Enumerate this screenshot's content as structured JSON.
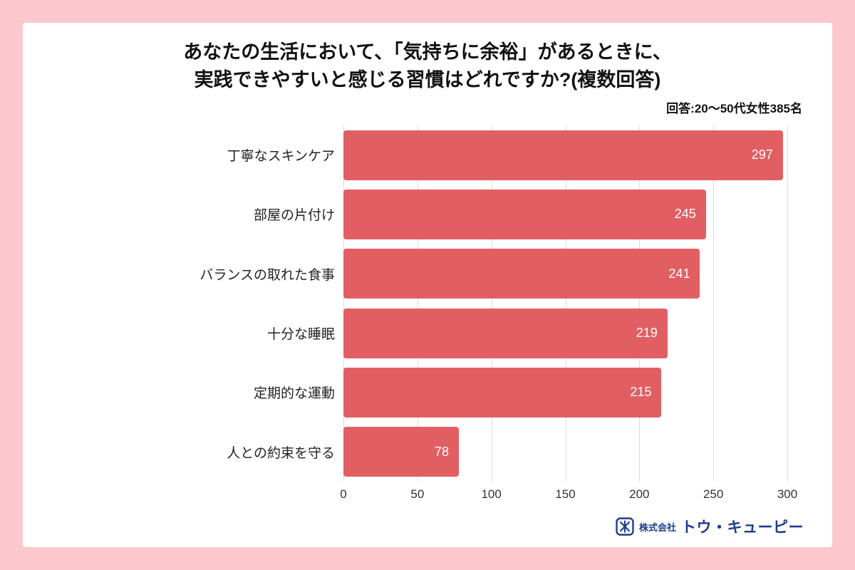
{
  "page": {
    "frame_color": "#fcc8ce",
    "card_color": "#ffffff"
  },
  "header": {
    "title_line1": "あなたの生活において、「気持ちに余裕」があるときに、",
    "title_line2": "実践できやすいと感じる習慣はどれですか?(複数回答)",
    "subtitle": "回答:20〜50代女性385名"
  },
  "chart_data": {
    "type": "bar",
    "orientation": "horizontal",
    "title": "あなたの生活において、「気持ちに余裕」があるときに、実践できやすいと感じる習慣はどれですか?(複数回答)",
    "subtitle": "回答:20〜50代女性385名",
    "categories": [
      "丁寧なスキンケア",
      "部屋の片付け",
      "バランスの取れた食事",
      "十分な睡眠",
      "定期的な運動",
      "人との約束を守る"
    ],
    "values": [
      297,
      245,
      241,
      219,
      215,
      78
    ],
    "xlabel": "",
    "ylabel": "",
    "xlim": [
      0,
      300
    ],
    "xticks": [
      0,
      50,
      100,
      150,
      200,
      250,
      300
    ],
    "grid": true,
    "legend": false,
    "bar_color": "#e15f63",
    "value_label_color": "#ffffff"
  },
  "footer": {
    "company_prefix": "株式会社",
    "brand": "トウ・キューピー",
    "logo_color": "#1c3d8f"
  }
}
